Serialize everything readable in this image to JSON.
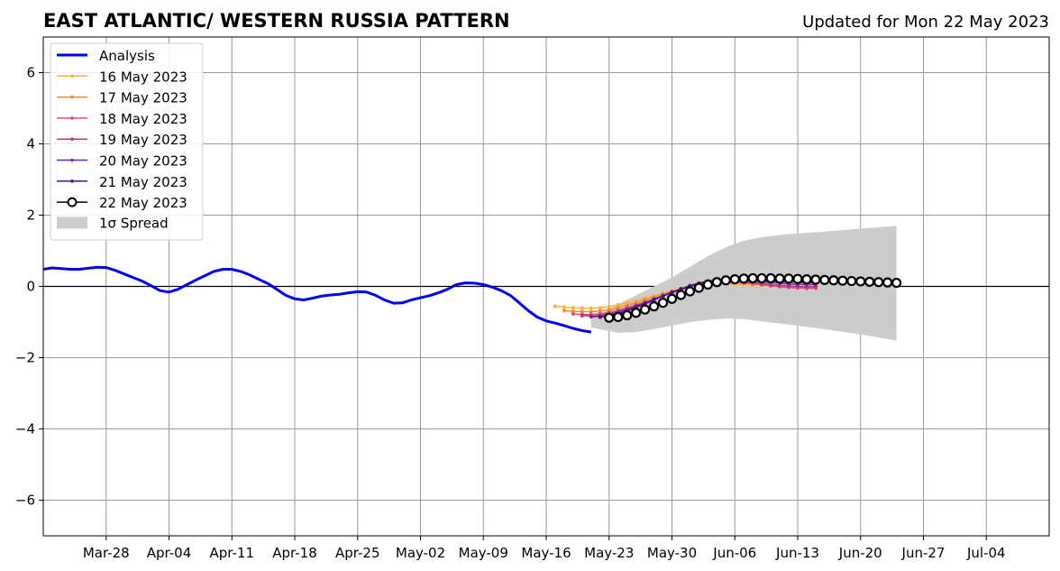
{
  "chart_data": {
    "type": "line",
    "title": "EAST ATLANTIC/ WESTERN RUSSIA PATTERN",
    "subtitle": "Updated for Mon 22 May 2023",
    "xlabel": "",
    "ylabel": "",
    "ylim": [
      -7,
      7
    ],
    "xlim": [
      "2023-03-21",
      "2023-07-11"
    ],
    "grid": true,
    "legend_position": "top-left",
    "x_ticks": [
      {
        "date": "2023-03-28",
        "label": "Mar-28"
      },
      {
        "date": "2023-04-04",
        "label": "Apr-04"
      },
      {
        "date": "2023-04-11",
        "label": "Apr-11"
      },
      {
        "date": "2023-04-18",
        "label": "Apr-18"
      },
      {
        "date": "2023-04-25",
        "label": "Apr-25"
      },
      {
        "date": "2023-05-02",
        "label": "May-02"
      },
      {
        "date": "2023-05-09",
        "label": "May-09"
      },
      {
        "date": "2023-05-16",
        "label": "May-16"
      },
      {
        "date": "2023-05-23",
        "label": "May-23"
      },
      {
        "date": "2023-05-30",
        "label": "May-30"
      },
      {
        "date": "2023-06-06",
        "label": "Jun-06"
      },
      {
        "date": "2023-06-13",
        "label": "Jun-13"
      },
      {
        "date": "2023-06-20",
        "label": "Jun-20"
      },
      {
        "date": "2023-06-27",
        "label": "Jun-27"
      },
      {
        "date": "2023-07-04",
        "label": "Jul-04"
      }
    ],
    "y_ticks": [
      {
        "value": -6,
        "label": "−6"
      },
      {
        "value": -4,
        "label": "−4"
      },
      {
        "value": -2,
        "label": "−2"
      },
      {
        "value": 0,
        "label": "0"
      },
      {
        "value": 2,
        "label": "2"
      },
      {
        "value": 4,
        "label": "4"
      },
      {
        "value": 6,
        "label": "6"
      }
    ],
    "analysis": {
      "name": "Analysis",
      "color": "#0000ee",
      "start": "2023-03-21",
      "values": [
        0.48,
        0.52,
        0.5,
        0.48,
        0.48,
        0.51,
        0.54,
        0.53,
        0.45,
        0.35,
        0.25,
        0.15,
        0.02,
        -0.12,
        -0.16,
        -0.08,
        0.05,
        0.18,
        0.3,
        0.42,
        0.48,
        0.48,
        0.42,
        0.32,
        0.2,
        0.08,
        -0.08,
        -0.25,
        -0.35,
        -0.38,
        -0.33,
        -0.27,
        -0.24,
        -0.22,
        -0.18,
        -0.15,
        -0.16,
        -0.25,
        -0.38,
        -0.47,
        -0.46,
        -0.38,
        -0.32,
        -0.26,
        -0.18,
        -0.08,
        0.05,
        0.1,
        0.09,
        0.05,
        -0.02,
        -0.12,
        -0.25,
        -0.46,
        -0.68,
        -0.86,
        -0.97,
        -1.03,
        -1.1,
        -1.18,
        -1.24,
        -1.28
      ]
    },
    "spread": {
      "name": "1σ Spread",
      "color": "#cccccc",
      "dates": [
        "2023-05-21",
        "2023-05-24",
        "2023-05-26",
        "2023-05-28",
        "2023-05-30",
        "2023-06-01",
        "2023-06-03",
        "2023-06-05",
        "2023-06-07",
        "2023-06-09",
        "2023-06-12",
        "2023-06-16",
        "2023-06-20",
        "2023-06-24"
      ],
      "upper": [
        -0.9,
        -0.5,
        -0.25,
        0.0,
        0.25,
        0.55,
        0.85,
        1.1,
        1.28,
        1.38,
        1.47,
        1.54,
        1.62,
        1.7
      ],
      "lower": [
        -1.15,
        -1.3,
        -1.28,
        -1.2,
        -1.1,
        -1.0,
        -0.94,
        -0.9,
        -0.92,
        -0.98,
        -1.07,
        -1.2,
        -1.35,
        -1.52
      ]
    },
    "forecasts": [
      {
        "name": "16 May 2023",
        "color": "#fdb23a",
        "start": "2023-05-17",
        "values": [
          -0.56,
          -0.58,
          -0.6,
          -0.61,
          -0.61,
          -0.6,
          -0.57,
          -0.52,
          -0.46,
          -0.4,
          -0.33,
          -0.26,
          -0.19,
          -0.12,
          -0.06,
          0.0,
          0.04,
          0.06,
          0.07,
          0.07,
          0.06,
          0.05,
          0.04,
          0.03,
          0.01,
          0.0,
          -0.01,
          -0.02,
          -0.03,
          -0.03
        ]
      },
      {
        "name": "17 May 2023",
        "color": "#f2883f",
        "start": "2023-05-18",
        "values": [
          -0.68,
          -0.7,
          -0.71,
          -0.71,
          -0.69,
          -0.65,
          -0.6,
          -0.53,
          -0.46,
          -0.38,
          -0.3,
          -0.22,
          -0.14,
          -0.07,
          0.0,
          0.05,
          0.08,
          0.1,
          0.1,
          0.1,
          0.09,
          0.07,
          0.05,
          0.03,
          0.01,
          -0.01,
          -0.02,
          -0.03,
          -0.03
        ]
      },
      {
        "name": "18 May 2023",
        "color": "#d9546b",
        "start": "2023-05-19",
        "values": [
          -0.77,
          -0.79,
          -0.79,
          -0.77,
          -0.73,
          -0.67,
          -0.6,
          -0.52,
          -0.44,
          -0.35,
          -0.26,
          -0.17,
          -0.09,
          -0.02,
          0.04,
          0.08,
          0.11,
          0.12,
          0.12,
          0.1,
          0.08,
          0.05,
          0.02,
          -0.01,
          -0.03,
          -0.04,
          -0.05,
          -0.05
        ]
      },
      {
        "name": "19 May 2023",
        "color": "#b1398a",
        "start": "2023-05-20",
        "values": [
          -0.82,
          -0.83,
          -0.81,
          -0.77,
          -0.71,
          -0.63,
          -0.55,
          -0.46,
          -0.37,
          -0.27,
          -0.18,
          -0.09,
          -0.01,
          0.06,
          0.11,
          0.14,
          0.15,
          0.15,
          0.13,
          0.11,
          0.08,
          0.05,
          0.03,
          0.01,
          0.0,
          -0.01,
          -0.01
        ]
      },
      {
        "name": "20 May 2023",
        "color": "#7e1fa0",
        "start": "2023-05-21",
        "values": [
          -0.85,
          -0.84,
          -0.8,
          -0.73,
          -0.65,
          -0.56,
          -0.46,
          -0.36,
          -0.26,
          -0.16,
          -0.07,
          0.01,
          0.08,
          0.13,
          0.16,
          0.18,
          0.18,
          0.17,
          0.15,
          0.13,
          0.11,
          0.09,
          0.07,
          0.06,
          0.05,
          0.05
        ]
      },
      {
        "name": "21 May 2023",
        "color": "#4a1086",
        "start": "2023-05-22",
        "values": [
          -0.86,
          -0.83,
          -0.77,
          -0.69,
          -0.59,
          -0.49,
          -0.38,
          -0.27,
          -0.17,
          -0.07,
          0.02,
          0.09,
          0.15,
          0.18,
          0.2,
          0.21,
          0.2,
          0.19,
          0.17,
          0.16,
          0.14,
          0.13,
          0.12,
          0.11,
          0.1
        ]
      },
      {
        "name": "22 May 2023",
        "color": "#000000",
        "start": "2023-05-23",
        "values": [
          -0.88,
          -0.86,
          -0.81,
          -0.74,
          -0.65,
          -0.56,
          -0.46,
          -0.35,
          -0.24,
          -0.14,
          -0.04,
          0.05,
          0.12,
          0.17,
          0.2,
          0.22,
          0.23,
          0.23,
          0.23,
          0.22,
          0.22,
          0.21,
          0.2,
          0.19,
          0.18,
          0.17,
          0.16,
          0.15,
          0.14,
          0.13,
          0.12,
          0.11,
          0.1
        ]
      }
    ]
  }
}
